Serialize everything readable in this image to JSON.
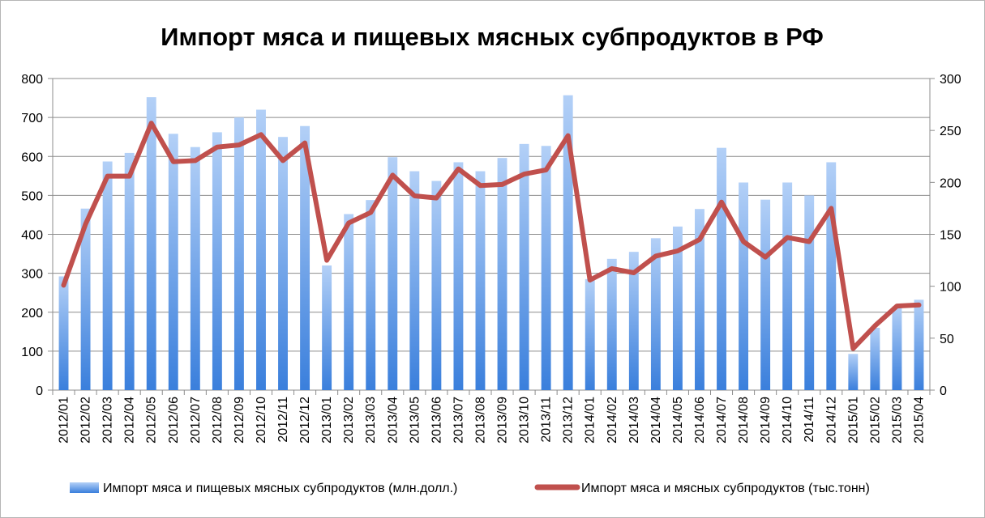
{
  "chart_data": {
    "type": "bar",
    "title": "Импорт мяса и пищевых мясных субпродуктов в РФ",
    "categories": [
      "2012/01",
      "2012/02",
      "2012/03",
      "2012/04",
      "2012/05",
      "2012/06",
      "2012/07",
      "2012/08",
      "2012/09",
      "2012/10",
      "2012/11",
      "2012/12",
      "2013/01",
      "2013/02",
      "2013/03",
      "2013/04",
      "2013/05",
      "2013/06",
      "2013/07",
      "2013/08",
      "2013/09",
      "2013/10",
      "2013/11",
      "2013/12",
      "2014/01",
      "2014/02",
      "2014/03",
      "2014/04",
      "2014/05",
      "2014/06",
      "2014/07",
      "2014/08",
      "2014/09",
      "2014/10",
      "2014/11",
      "2014/12",
      "2015/01",
      "2015/02",
      "2015/03",
      "2015/04"
    ],
    "series": [
      {
        "name": "Импорт мяса и пищевых мясных субпродуктов (млн.долл.)",
        "type": "bar",
        "axis": "left",
        "color": "#4a8ae0",
        "values": [
          292,
          466,
          587,
          609,
          752,
          658,
          624,
          662,
          700,
          720,
          650,
          678,
          320,
          452,
          488,
          598,
          562,
          537,
          585,
          562,
          596,
          632,
          627,
          757,
          285,
          337,
          355,
          390,
          420,
          465,
          622,
          533,
          489,
          533,
          500,
          585,
          93,
          160,
          215,
          232
        ]
      },
      {
        "name": "Импорт мяса и мясных субпродуктов (тыс.тонн)",
        "type": "line",
        "axis": "right",
        "color": "#c0504d",
        "values": [
          101,
          160,
          206,
          206,
          257,
          220,
          221,
          234,
          236,
          246,
          221,
          238,
          125,
          161,
          171,
          207,
          187,
          185,
          213,
          197,
          198,
          208,
          212,
          245,
          106,
          117,
          113,
          129,
          134,
          145,
          181,
          143,
          128,
          147,
          143,
          175,
          40,
          62,
          81,
          82
        ]
      }
    ],
    "y_left": {
      "min": 0,
      "max": 800,
      "ticks": [
        "0",
        "100",
        "200",
        "300",
        "400",
        "500",
        "600",
        "700",
        "800"
      ]
    },
    "y_right": {
      "min": 0,
      "max": 300,
      "ticks": [
        "0",
        "50",
        "100",
        "150",
        "200",
        "250",
        "300"
      ]
    },
    "grid": true,
    "legend": "bottom"
  }
}
